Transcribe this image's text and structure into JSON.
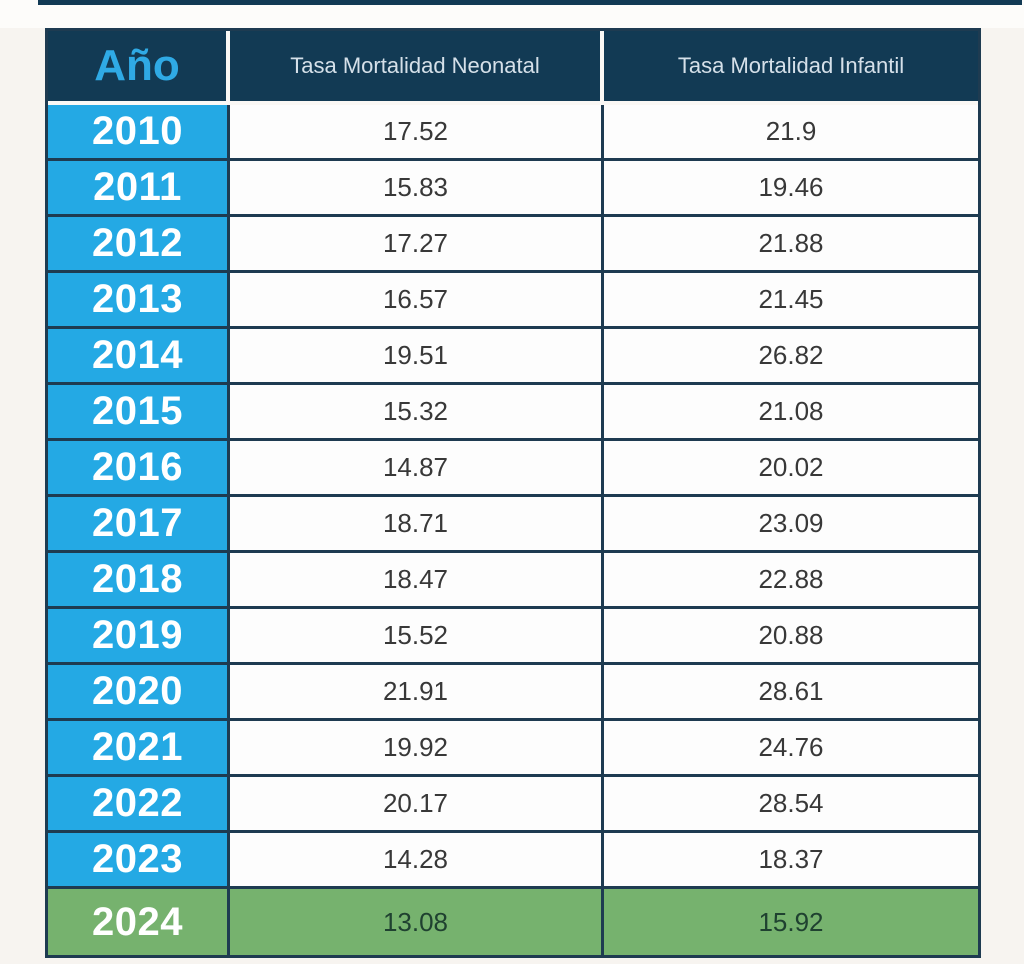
{
  "page": {
    "background_color": "#F7F4F0"
  },
  "colors": {
    "header_navy": "#123A54",
    "year_cyan": "#24A9E4",
    "highlight_green": "#76B26E",
    "body_border_navy": "#1E3B51",
    "ano_text_blue": "#2FAAE5",
    "header_text": "#D5E0E9",
    "value_text": "#383838",
    "highlight_value_text": "#1F4130"
  },
  "table": {
    "columns": [
      "Año",
      "Tasa Mortalidad Neonatal",
      "Tasa Mortalidad Infantil"
    ],
    "rows": [
      {
        "year": "2010",
        "neonatal": "17.52",
        "infantil": "21.9",
        "highlight": false
      },
      {
        "year": "2011",
        "neonatal": "15.83",
        "infantil": "19.46",
        "highlight": false
      },
      {
        "year": "2012",
        "neonatal": "17.27",
        "infantil": "21.88",
        "highlight": false
      },
      {
        "year": "2013",
        "neonatal": "16.57",
        "infantil": "21.45",
        "highlight": false
      },
      {
        "year": "2014",
        "neonatal": "19.51",
        "infantil": "26.82",
        "highlight": false
      },
      {
        "year": "2015",
        "neonatal": "15.32",
        "infantil": "21.08",
        "highlight": false
      },
      {
        "year": "2016",
        "neonatal": "14.87",
        "infantil": "20.02",
        "highlight": false
      },
      {
        "year": "2017",
        "neonatal": "18.71",
        "infantil": "23.09",
        "highlight": false
      },
      {
        "year": "2018",
        "neonatal": "18.47",
        "infantil": "22.88",
        "highlight": false
      },
      {
        "year": "2019",
        "neonatal": "15.52",
        "infantil": "20.88",
        "highlight": false
      },
      {
        "year": "2020",
        "neonatal": "21.91",
        "infantil": "28.61",
        "highlight": false
      },
      {
        "year": "2021",
        "neonatal": "19.92",
        "infantil": "24.76",
        "highlight": false
      },
      {
        "year": "2022",
        "neonatal": "20.17",
        "infantil": "28.54",
        "highlight": false
      },
      {
        "year": "2023",
        "neonatal": "14.28",
        "infantil": "18.37",
        "highlight": false
      },
      {
        "year": "2024",
        "neonatal": "13.08",
        "infantil": "15.92",
        "highlight": true
      }
    ]
  },
  "chart_data": {
    "type": "table",
    "columns": [
      "Año",
      "Tasa Mortalidad Neonatal",
      "Tasa Mortalidad Infantil"
    ],
    "categories": [
      "2010",
      "2011",
      "2012",
      "2013",
      "2014",
      "2015",
      "2016",
      "2017",
      "2018",
      "2019",
      "2020",
      "2021",
      "2022",
      "2023",
      "2024"
    ],
    "series": [
      {
        "name": "Tasa Mortalidad Neonatal",
        "values": [
          17.52,
          15.83,
          17.27,
          16.57,
          19.51,
          15.32,
          14.87,
          18.71,
          18.47,
          15.52,
          21.91,
          19.92,
          20.17,
          14.28,
          13.08
        ]
      },
      {
        "name": "Tasa Mortalidad Infantil",
        "values": [
          21.9,
          19.46,
          21.88,
          21.45,
          26.82,
          21.08,
          20.02,
          23.09,
          22.88,
          20.88,
          28.61,
          24.76,
          28.54,
          18.37,
          15.92
        ]
      }
    ],
    "highlighted_row": "2024",
    "legend_position": "none",
    "grid": true
  }
}
